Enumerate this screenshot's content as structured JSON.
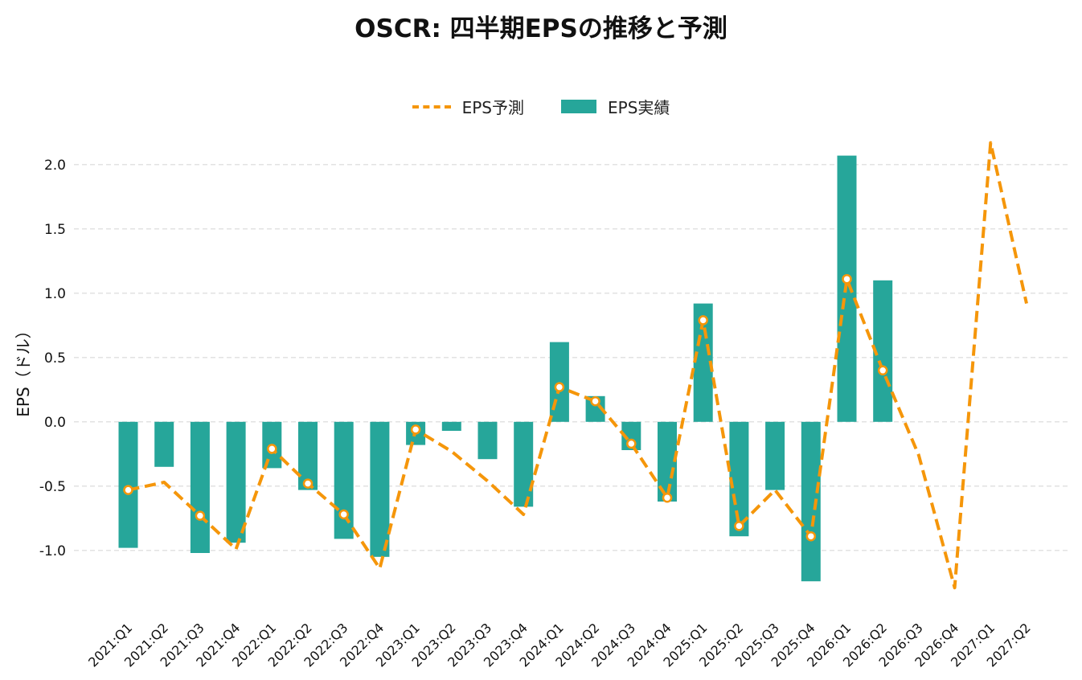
{
  "colors": {
    "actual": "#26a69a",
    "forecast": "#f5960a",
    "grid": "#d9d9d9",
    "axis_text": "#111111"
  },
  "chart_data": {
    "type": "bar+line",
    "title": "OSCR: 四半期EPSの推移と予測",
    "ylabel": "EPS（ドル）",
    "xlabel": "",
    "ylim": [
      -1.47,
      2.28
    ],
    "yticks": [
      -1.0,
      -0.5,
      0.0,
      0.5,
      1.0,
      1.5,
      2.0
    ],
    "ytick_labels": [
      "-1.0",
      "-0.5",
      "0.0",
      "0.5",
      "1.0",
      "1.5",
      "2.0"
    ],
    "grid": true,
    "legend": "top-center",
    "categories": [
      "2021:Q1",
      "2021:Q2",
      "2021:Q3",
      "2021:Q4",
      "2022:Q1",
      "2022:Q2",
      "2022:Q3",
      "2022:Q4",
      "2023:Q1",
      "2023:Q2",
      "2023:Q3",
      "2023:Q4",
      "2024:Q1",
      "2024:Q2",
      "2024:Q3",
      "2024:Q4",
      "2025:Q1",
      "2025:Q2",
      "2025:Q3",
      "2025:Q4",
      "2026:Q1",
      "2026:Q2",
      "2026:Q3",
      "2026:Q4",
      "2027:Q1",
      "2027:Q2"
    ],
    "series": [
      {
        "name": "EPS予測",
        "kind": "line",
        "values": [
          -0.53,
          -0.47,
          -0.73,
          -0.99,
          -0.21,
          -0.48,
          -0.72,
          -1.14,
          -0.06,
          -0.23,
          -0.46,
          -0.72,
          0.27,
          0.16,
          -0.17,
          -0.59,
          0.79,
          -0.81,
          -0.53,
          -0.89,
          1.11,
          0.4,
          -0.26,
          -1.29,
          2.17,
          0.92
        ],
        "markers": [
          true,
          false,
          true,
          false,
          true,
          true,
          true,
          false,
          true,
          false,
          false,
          false,
          true,
          true,
          true,
          true,
          true,
          true,
          false,
          true,
          true,
          true,
          false,
          false,
          false,
          false
        ]
      },
      {
        "name": "EPS実績",
        "kind": "bar",
        "values": [
          -0.98,
          -0.35,
          -1.02,
          -0.94,
          -0.36,
          -0.53,
          -0.91,
          -1.05,
          -0.18,
          -0.07,
          -0.29,
          -0.66,
          0.62,
          0.2,
          -0.22,
          -0.62,
          0.92,
          -0.89,
          -0.53,
          -1.24,
          2.07,
          1.1,
          null,
          null,
          null,
          null
        ]
      }
    ]
  }
}
